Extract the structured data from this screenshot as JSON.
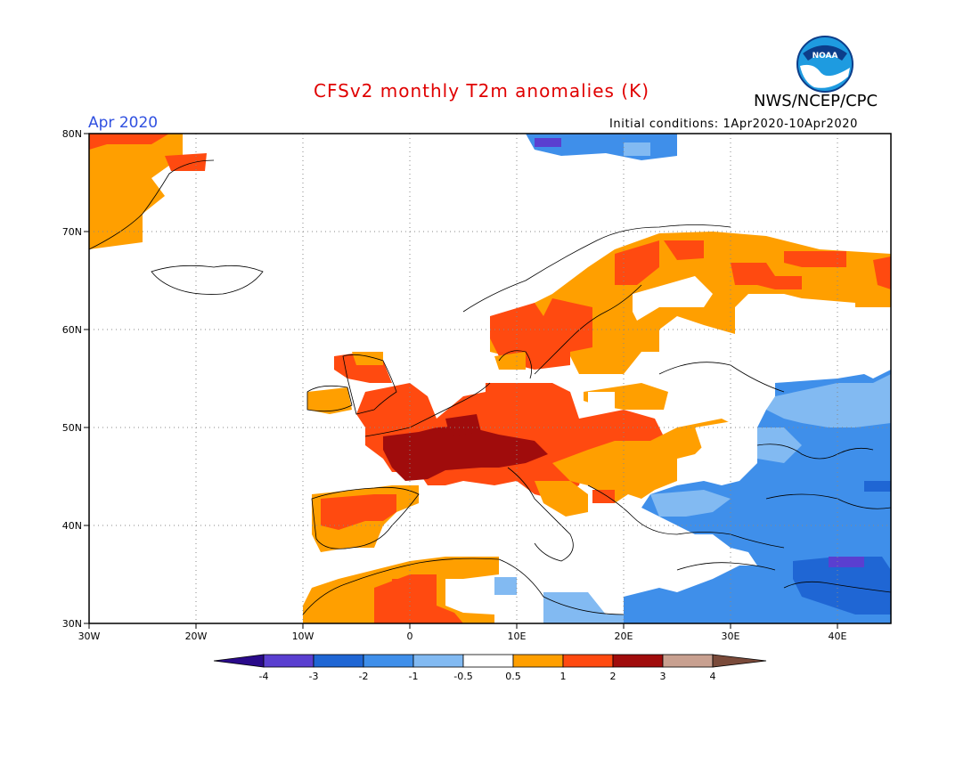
{
  "header": {
    "title": "CFSv2 monthly T2m anomalies (K)",
    "organization": "NWS/NCEP/CPC",
    "valid_month": "Apr 2020",
    "initial_conditions": "Initial conditions: 1Apr2020-10Apr2020",
    "logo_text": "NOAA"
  },
  "map": {
    "lat_labels": [
      "80N",
      "70N",
      "60N",
      "50N",
      "40N",
      "30N"
    ],
    "lon_labels": [
      "30W",
      "20W",
      "10W",
      "0",
      "10E",
      "20E",
      "30E",
      "40E"
    ],
    "extent": {
      "lon_min": -30,
      "lon_max": 45,
      "lat_min": 30,
      "lat_max": 80
    }
  },
  "colorbar": {
    "labels": [
      "-4",
      "-3",
      "-2",
      "-1",
      "-0.5",
      "0.5",
      "1",
      "2",
      "3",
      "4"
    ],
    "colors": [
      "#2a0a8a",
      "#5a3fd0",
      "#1f66d4",
      "#3f8fea",
      "#82baf2",
      "#ffffff",
      "#ff9f00",
      "#ff4a10",
      "#a00c0c",
      "#c8a090",
      "#7a4a3a"
    ]
  }
}
